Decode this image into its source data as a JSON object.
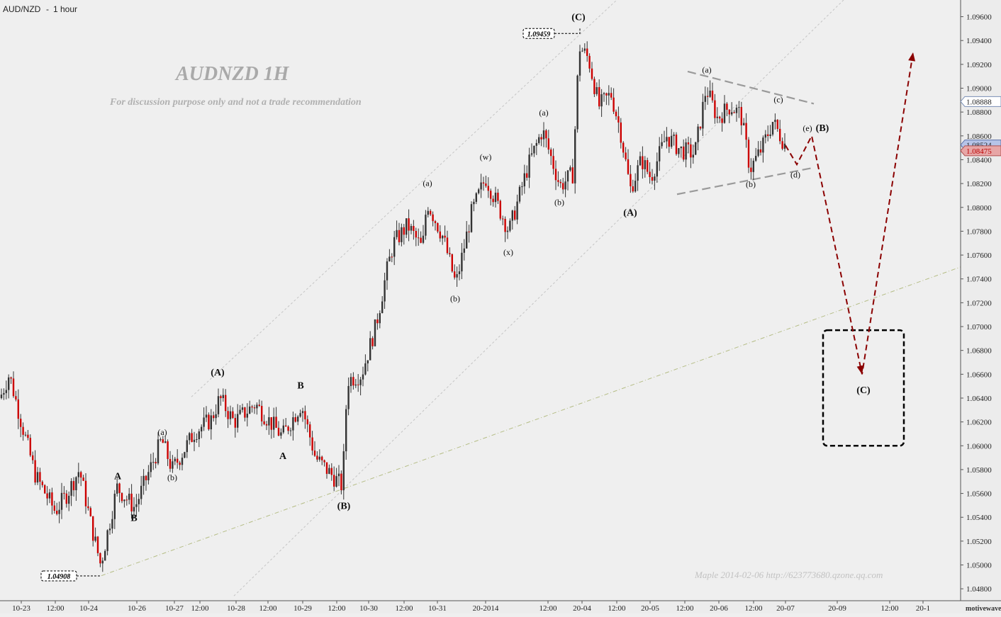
{
  "chart_data": {
    "type": "candlestick",
    "symbol_label": "AUD/NZD",
    "timeframe_label": "1 hour",
    "title": "AUDNZD  1H",
    "subtitle": "For discussion purpose only and not a trade recommendation",
    "ylim": [
      1.047,
      1.0974
    ],
    "y_ticks": [
      "1.09600",
      "1.09400",
      "1.09200",
      "1.09000",
      "1.08800",
      "1.08600",
      "1.08400",
      "1.08200",
      "1.08000",
      "1.07800",
      "1.07600",
      "1.07400",
      "1.07200",
      "1.07000",
      "1.06800",
      "1.06600",
      "1.06400",
      "1.06200",
      "1.06000",
      "1.05800",
      "1.05600",
      "1.05400",
      "1.05200",
      "1.05000",
      "1.04800"
    ],
    "x_ticks": [
      "10-23",
      "12:00",
      "10-24",
      "10-26",
      "10-27",
      "12:00",
      "10-28",
      "12:00",
      "10-29",
      "12:00",
      "10-30",
      "12:00",
      "10-31",
      "20-2014",
      "12:00",
      "20-04",
      "12:00",
      "20-05",
      "12:00",
      "20-06",
      "12:00",
      "20-07",
      "20-09",
      "12:00",
      "20-1"
    ],
    "price_tags": [
      {
        "label": "1.08888",
        "value": 1.08888,
        "style": "outline"
      },
      {
        "label": "1.08524",
        "value": 1.08524,
        "style": "blue"
      },
      {
        "label": "1.08475",
        "value": 1.08475,
        "style": "red"
      }
    ],
    "price_callouts": [
      {
        "label": "1.09459",
        "value": 1.09459
      },
      {
        "label": "1.04908",
        "value": 1.04908
      }
    ],
    "price_path": [
      {
        "x": 0,
        "p": 1.064
      },
      {
        "x": 13,
        "p": 1.066
      },
      {
        "x": 30,
        "p": 1.062
      },
      {
        "x": 50,
        "p": 1.0575
      },
      {
        "x": 78,
        "p": 1.0545
      },
      {
        "x": 95,
        "p": 1.056
      },
      {
        "x": 112,
        "p": 1.058
      },
      {
        "x": 128,
        "p": 1.0535
      },
      {
        "x": 142,
        "p": 1.05
      },
      {
        "x": 165,
        "p": 1.0565
      },
      {
        "x": 190,
        "p": 1.0548
      },
      {
        "x": 228,
        "p": 1.0605
      },
      {
        "x": 243,
        "p": 1.058
      },
      {
        "x": 275,
        "p": 1.0612
      },
      {
        "x": 298,
        "p": 1.0622
      },
      {
        "x": 310,
        "p": 1.064
      },
      {
        "x": 330,
        "p": 1.062
      },
      {
        "x": 360,
        "p": 1.0635
      },
      {
        "x": 398,
        "p": 1.0608
      },
      {
        "x": 425,
        "p": 1.0635
      },
      {
        "x": 445,
        "p": 1.059
      },
      {
        "x": 483,
        "p": 1.0566
      },
      {
        "x": 490,
        "p": 1.0655
      },
      {
        "x": 510,
        "p": 1.066
      },
      {
        "x": 530,
        "p": 1.07
      },
      {
        "x": 545,
        "p": 1.0745
      },
      {
        "x": 555,
        "p": 1.077
      },
      {
        "x": 575,
        "p": 1.0785
      },
      {
        "x": 596,
        "p": 1.0765
      },
      {
        "x": 602,
        "p": 1.0805
      },
      {
        "x": 625,
        "p": 1.0775
      },
      {
        "x": 643,
        "p": 1.0735
      },
      {
        "x": 665,
        "p": 1.0795
      },
      {
        "x": 685,
        "p": 1.0825
      },
      {
        "x": 718,
        "p": 1.078
      },
      {
        "x": 745,
        "p": 1.0835
      },
      {
        "x": 765,
        "p": 1.0865
      },
      {
        "x": 790,
        "p": 1.0818
      },
      {
        "x": 808,
        "p": 1.0828
      },
      {
        "x": 817,
        "p": 1.0935
      },
      {
        "x": 830,
        "p": 1.0925
      },
      {
        "x": 845,
        "p": 1.0885
      },
      {
        "x": 862,
        "p": 1.0895
      },
      {
        "x": 875,
        "p": 1.0865
      },
      {
        "x": 889,
        "p": 1.0815
      },
      {
        "x": 905,
        "p": 1.084
      },
      {
        "x": 918,
        "p": 1.0825
      },
      {
        "x": 940,
        "p": 1.086
      },
      {
        "x": 960,
        "p": 1.0848
      },
      {
        "x": 980,
        "p": 1.0845
      },
      {
        "x": 996,
        "p": 1.09
      },
      {
        "x": 1012,
        "p": 1.0875
      },
      {
        "x": 1030,
        "p": 1.0885
      },
      {
        "x": 1045,
        "p": 1.0878
      },
      {
        "x": 1058,
        "p": 1.0832
      },
      {
        "x": 1075,
        "p": 1.085
      },
      {
        "x": 1090,
        "p": 1.0872
      },
      {
        "x": 1108,
        "p": 1.0852
      }
    ],
    "wave_labels": [
      {
        "text": "(A)",
        "x": 307,
        "p": 1.0659,
        "weight": "bold"
      },
      {
        "text": "(B)",
        "x": 485,
        "p": 1.0547,
        "weight": "bold"
      },
      {
        "text": "(C)",
        "x": 816,
        "p": 1.0957,
        "weight": "bold"
      },
      {
        "text": "(A)",
        "x": 889,
        "p": 1.0793,
        "weight": "bold"
      },
      {
        "text": "(B)",
        "x": 1160,
        "p": 1.0864,
        "weight": "bold"
      },
      {
        "text": "(C)",
        "x": 1218,
        "p": 1.0644,
        "weight": "bold"
      },
      {
        "text": "A",
        "x": 166,
        "p": 1.0572,
        "weight": "bold"
      },
      {
        "text": "B",
        "x": 189,
        "p": 1.0537,
        "weight": "bold"
      },
      {
        "text": "A",
        "x": 399,
        "p": 1.0589,
        "weight": "bold"
      },
      {
        "text": "B",
        "x": 424,
        "p": 1.0648,
        "weight": "bold"
      },
      {
        "text": "(a)",
        "x": 229,
        "p": 1.0609,
        "weight": "normal"
      },
      {
        "text": "(b)",
        "x": 243,
        "p": 1.0571,
        "weight": "normal"
      },
      {
        "text": "(a)",
        "x": 603,
        "p": 1.0818,
        "weight": "normal"
      },
      {
        "text": "(b)",
        "x": 642,
        "p": 1.0721,
        "weight": "normal"
      },
      {
        "text": "(w)",
        "x": 685,
        "p": 1.084,
        "weight": "normal"
      },
      {
        "text": "(x)",
        "x": 717,
        "p": 1.076,
        "weight": "normal"
      },
      {
        "text": "(a)",
        "x": 767,
        "p": 1.0877,
        "weight": "normal"
      },
      {
        "text": "(b)",
        "x": 789,
        "p": 1.0802,
        "weight": "normal"
      },
      {
        "text": "(a)",
        "x": 997,
        "p": 1.0913,
        "weight": "normal"
      },
      {
        "text": "(b)",
        "x": 1059,
        "p": 1.0817,
        "weight": "normal"
      },
      {
        "text": "(c)",
        "x": 1098,
        "p": 1.0888,
        "weight": "normal"
      },
      {
        "text": "(d)",
        "x": 1122,
        "p": 1.0825,
        "weight": "normal"
      },
      {
        "text": "(e)",
        "x": 1139,
        "p": 1.0864,
        "weight": "normal"
      }
    ],
    "forecast_path": [
      {
        "x": 1108,
        "p": 1.0852
      },
      {
        "x": 1124,
        "p": 1.0836
      },
      {
        "x": 1145,
        "p": 1.086
      },
      {
        "x": 1216,
        "p": 1.066
      },
      {
        "x": 1288,
        "p": 1.093
      }
    ],
    "channel_lines": [
      {
        "x1": 270,
        "p1": 1.0641,
        "x2": 870,
        "p2": 1.0974,
        "style": "dotted"
      },
      {
        "x1": 330,
        "p1": 1.0474,
        "x2": 1190,
        "p2": 1.0974,
        "style": "dotted"
      },
      {
        "x1": 143,
        "p1": 1.0491,
        "x2": 1355,
        "p2": 1.075,
        "style": "dashdot"
      }
    ],
    "triangle_lines": [
      {
        "x1": 970,
        "p1": 1.0914,
        "x2": 1148,
        "p2": 1.0887
      },
      {
        "x1": 955,
        "p1": 1.0811,
        "x2": 1145,
        "p2": 1.0833
      }
    ],
    "target_box": {
      "p_top": 1.0697,
      "p_bottom": 1.06
    },
    "colors": {
      "up": "#333333",
      "down": "#cc0000",
      "forecast": "#8b0000",
      "background": "#efefef"
    },
    "credit": "Maple    2014-02-06    http://623773680.qzone.qq.com",
    "watermark": "motivewave.com"
  }
}
